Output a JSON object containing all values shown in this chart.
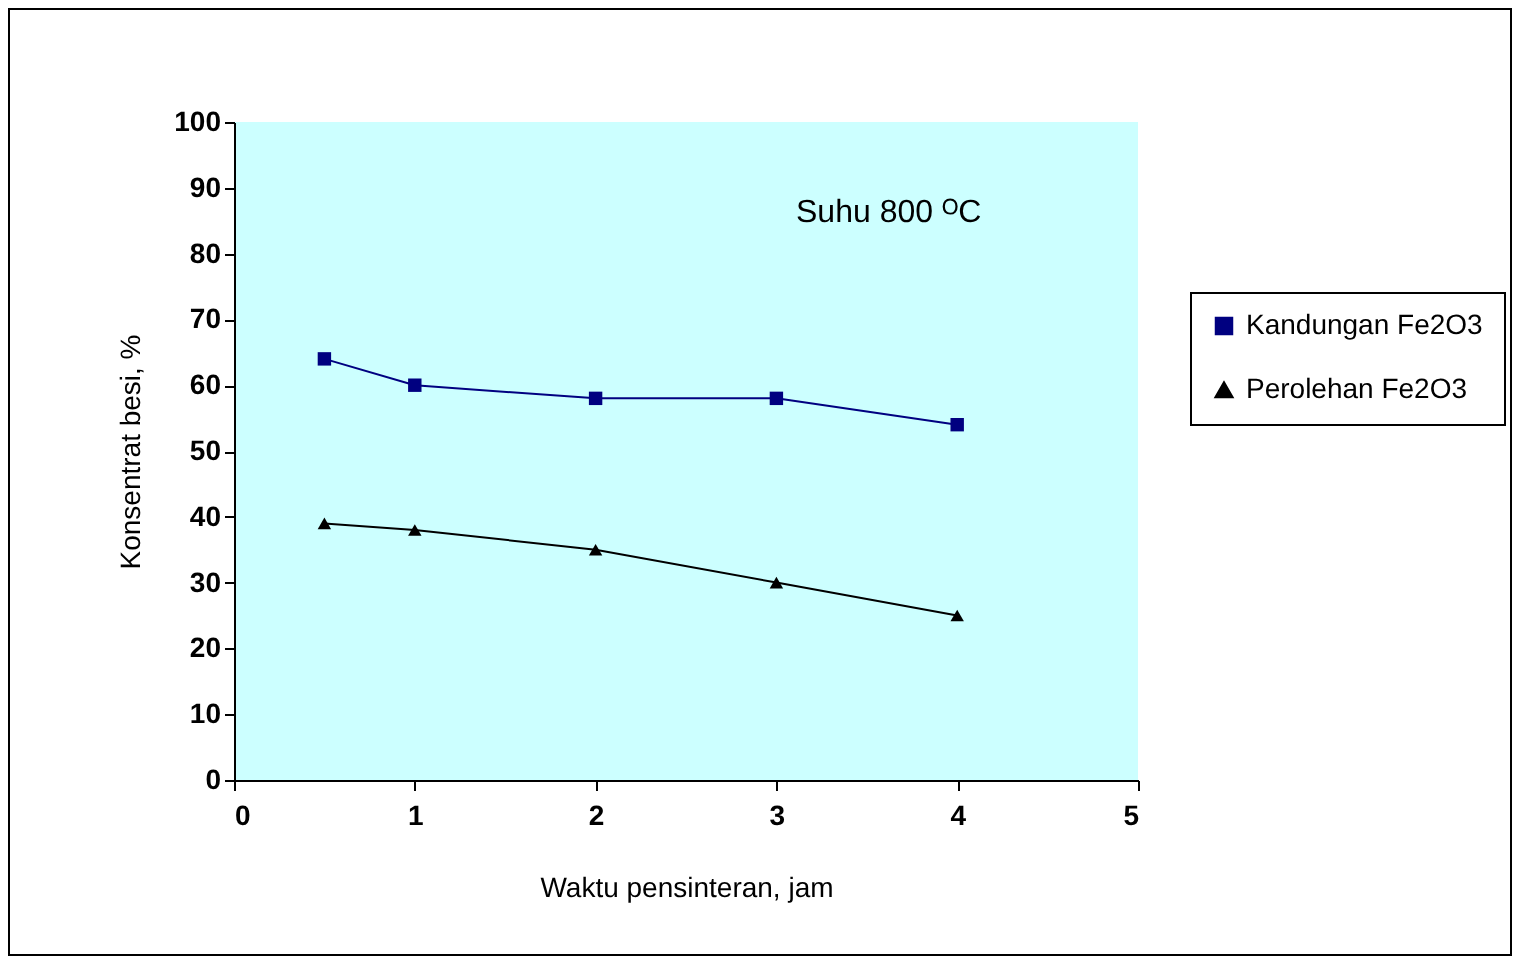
{
  "chart_data": {
    "type": "line",
    "xlabel": "Waktu pensinteran, jam",
    "ylabel": "Konsentrat besi, %",
    "x": [
      0.5,
      1,
      2,
      3,
      4
    ],
    "series": [
      {
        "name": "Kandungan Fe2O3",
        "color": "#000080",
        "marker": "square",
        "values": [
          64,
          60,
          58,
          58,
          54
        ]
      },
      {
        "name": "Perolehan Fe2O3",
        "color": "#000000",
        "marker": "triangle",
        "values": [
          39,
          38,
          35,
          30,
          25
        ]
      }
    ],
    "xlim": [
      0,
      5
    ],
    "xticks": [
      0,
      1,
      2,
      3,
      4,
      5
    ],
    "ylim": [
      0,
      100
    ],
    "yticks": [
      0,
      10,
      20,
      30,
      40,
      50,
      60,
      70,
      80,
      90,
      100
    ],
    "annotations": [
      "Suhu 800 ᴼC"
    ],
    "grid": false,
    "legend": "right",
    "line_style": "solid"
  }
}
